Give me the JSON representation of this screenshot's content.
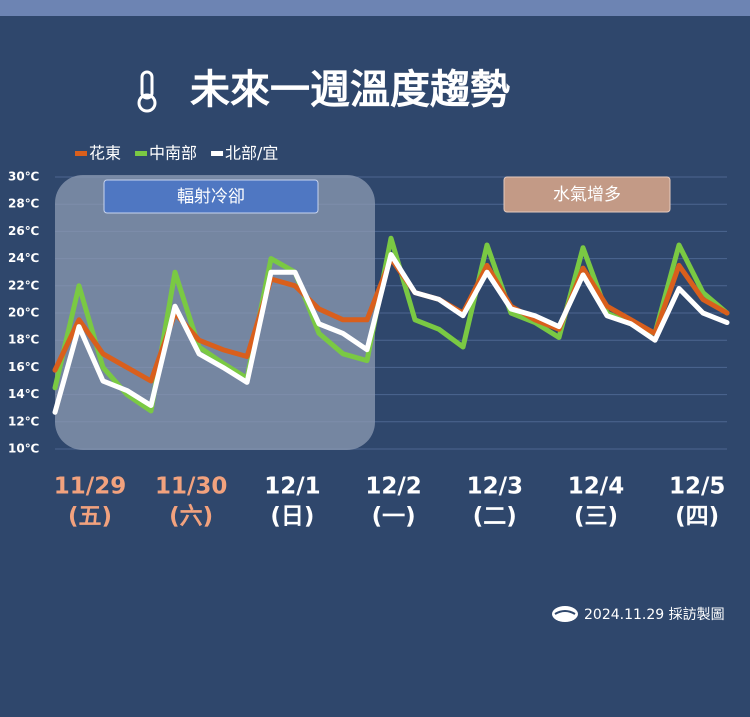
{
  "chart_data": {
    "type": "line",
    "title": "未來一週溫度趨勢",
    "days": [
      {
        "date": "11/29",
        "weekday": "(五)",
        "color": "#f2a27e"
      },
      {
        "date": "11/30",
        "weekday": "(六)",
        "color": "#f2a27e"
      },
      {
        "date": "12/1",
        "weekday": "(日)",
        "color": "#ffffff"
      },
      {
        "date": "12/2",
        "weekday": "(一)",
        "color": "#ffffff"
      },
      {
        "date": "12/3",
        "weekday": "(二)",
        "color": "#ffffff"
      },
      {
        "date": "12/4",
        "weekday": "(三)",
        "color": "#ffffff"
      },
      {
        "date": "12/5",
        "weekday": "(四)",
        "color": "#ffffff"
      }
    ],
    "series": [
      {
        "name": "花東",
        "color": "#d95f1c",
        "values": [
          15.8,
          19.5,
          17,
          16,
          15,
          20,
          18,
          17.3,
          16.8,
          22.5,
          22,
          20.3,
          19.5,
          19.5,
          24,
          21.5,
          21,
          20,
          23.5,
          20.5,
          19.5,
          18.8,
          23.3,
          20.5,
          19.5,
          18.5,
          23.5,
          21,
          20
        ]
      },
      {
        "name": "中南部",
        "color": "#7ac943",
        "values": [
          14.5,
          22,
          16,
          14,
          12.8,
          23,
          17.5,
          16.3,
          15.2,
          24,
          23,
          18.5,
          17,
          16.5,
          25.5,
          19.5,
          18.8,
          17.5,
          25,
          20,
          19.3,
          18.2,
          24.8,
          20,
          19.2,
          18.5,
          25,
          21.5,
          20
        ]
      },
      {
        "name": "北部/宜",
        "color": "#ffffff",
        "values": [
          12.7,
          19,
          15,
          14.3,
          13.2,
          20.5,
          17,
          16,
          14.9,
          23,
          23,
          19.2,
          18.5,
          17.3,
          24.3,
          21.5,
          21,
          19.8,
          23,
          20.3,
          19.8,
          19,
          22.8,
          19.8,
          19.2,
          18,
          21.8,
          20,
          19.3
        ]
      }
    ],
    "ylim": [
      10,
      30
    ],
    "yticks": [
      {
        "value": 10,
        "label": "10℃"
      },
      {
        "value": 12,
        "label": "12℃"
      },
      {
        "value": 14,
        "label": "14℃"
      },
      {
        "value": 16,
        "label": "16℃"
      },
      {
        "value": 18,
        "label": "18℃"
      },
      {
        "value": 20,
        "label": "20℃"
      },
      {
        "value": 22,
        "label": "22℃"
      },
      {
        "value": 24,
        "label": "24℃"
      },
      {
        "value": 26,
        "label": "26℃"
      },
      {
        "value": 28,
        "label": "28℃"
      },
      {
        "value": 30,
        "label": "30℃"
      }
    ],
    "grid": true,
    "annotations": [
      "輻射冷卻",
      "水氣增多"
    ],
    "footer": "2024.11.29 採訪製圖"
  }
}
